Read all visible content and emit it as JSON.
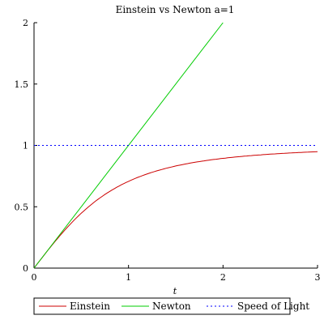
{
  "chart_data": {
    "type": "line",
    "title": "Einstein vs Newton a=1",
    "xlabel": "t",
    "ylabel": "",
    "xlim": [
      0,
      3
    ],
    "ylim": [
      0,
      2
    ],
    "x_ticks": [
      "0",
      "1",
      "2",
      "3"
    ],
    "y_ticks": [
      "0",
      "0.5",
      "1",
      "1.5",
      "2"
    ],
    "grid": false,
    "legend_position": "bottom",
    "series": [
      {
        "name": "Einstein",
        "color": "#cc0000",
        "style": "solid",
        "x": [
          0,
          0.25,
          0.5,
          0.75,
          1,
          1.25,
          1.5,
          1.75,
          2,
          2.25,
          2.5,
          2.75,
          3
        ],
        "y": [
          0,
          0.243,
          0.447,
          0.6,
          0.707,
          0.781,
          0.832,
          0.868,
          0.894,
          0.914,
          0.928,
          0.94,
          0.949
        ]
      },
      {
        "name": "Newton",
        "color": "#00cc00",
        "style": "solid",
        "x": [
          0,
          2
        ],
        "y": [
          0,
          2
        ]
      },
      {
        "name": "Speed of Light",
        "color": "#0000ff",
        "style": "dotted",
        "x": [
          0,
          3
        ],
        "y": [
          1,
          1
        ]
      }
    ]
  }
}
